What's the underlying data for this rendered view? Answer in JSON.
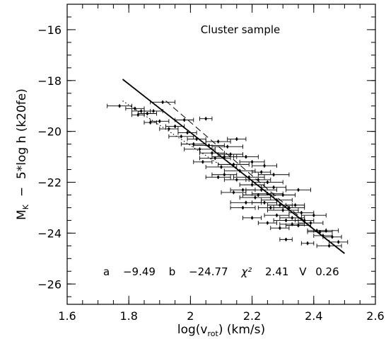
{
  "chart_data": {
    "type": "scatter",
    "title": "Cluster sample",
    "xlabel": "log(v_rot) (km/s)",
    "xlabel_parts": {
      "main": "log(v",
      "sub": "rot",
      "tail": ") (km/s)"
    },
    "ylabel": "M_K - 5*log h (k20fe)",
    "ylabel_parts": {
      "main": "M",
      "sub": "K",
      "tail": "  −  5*log h (k20fe)"
    },
    "xlim": [
      1.6,
      2.6
    ],
    "ylim": [
      -15,
      -26.8
    ],
    "y_inverted": true,
    "x_ticks": [
      1.6,
      1.8,
      2.0,
      2.2,
      2.4,
      2.6
    ],
    "x_tick_labels": [
      "1.6",
      "1.8",
      "2",
      "2.2",
      "2.4",
      "2.6"
    ],
    "y_ticks": [
      -16,
      -18,
      -20,
      -22,
      -24,
      -26
    ],
    "y_tick_labels": [
      "−16",
      "−18",
      "−20",
      "−22",
      "−24",
      "−26"
    ],
    "fit_text": {
      "a_label": "a",
      "a_value": "−9.49",
      "b_label": "b",
      "b_value": "−24.77",
      "chi_label": "χ²",
      "chi_value": "2.41",
      "v_label": "V",
      "v_value": "0.26"
    },
    "lines": [
      {
        "name": "",
        "style": "solid",
        "x": [
          1.78,
          2.5
        ],
        "y": [
          -17.95,
          -24.8
        ]
      },
      {
        "name": "",
        "style": "dashed",
        "x": [
          1.92,
          2.42
        ],
        "y": [
          -18.8,
          -24.05
        ]
      },
      {
        "name": "",
        "style": "dotted",
        "x": [
          1.78,
          2.1
        ],
        "y": [
          -18.8,
          -21.35
        ]
      }
    ],
    "points": [
      {
        "x": 1.77,
        "y": -19.0,
        "xerr": 0.04
      },
      {
        "x": 1.82,
        "y": -19.1,
        "xerr": 0.03
      },
      {
        "x": 1.84,
        "y": -19.2,
        "xerr": 0.03
      },
      {
        "x": 1.86,
        "y": -19.3,
        "xerr": 0.03
      },
      {
        "x": 1.83,
        "y": -19.35,
        "xerr": 0.02
      },
      {
        "x": 1.88,
        "y": -19.2,
        "xerr": 0.03
      },
      {
        "x": 1.91,
        "y": -18.85,
        "xerr": 0.04
      },
      {
        "x": 1.9,
        "y": -19.6,
        "xerr": 0.03
      },
      {
        "x": 1.87,
        "y": -19.65,
        "xerr": 0.02
      },
      {
        "x": 1.93,
        "y": -19.9,
        "xerr": 0.03
      },
      {
        "x": 1.95,
        "y": -19.8,
        "xerr": 0.03
      },
      {
        "x": 1.97,
        "y": -20.2,
        "xerr": 0.04
      },
      {
        "x": 1.99,
        "y": -20.05,
        "xerr": 0.03
      },
      {
        "x": 1.98,
        "y": -19.55,
        "xerr": 0.03
      },
      {
        "x": 2.01,
        "y": -20.5,
        "xerr": 0.04
      },
      {
        "x": 2.03,
        "y": -20.7,
        "xerr": 0.05
      },
      {
        "x": 2.02,
        "y": -20.3,
        "xerr": 0.03
      },
      {
        "x": 2.05,
        "y": -19.5,
        "xerr": 0.02
      },
      {
        "x": 2.06,
        "y": -20.55,
        "xerr": 0.05
      },
      {
        "x": 2.07,
        "y": -20.85,
        "xerr": 0.04
      },
      {
        "x": 2.04,
        "y": -21.2,
        "xerr": 0.03
      },
      {
        "x": 2.08,
        "y": -21.05,
        "xerr": 0.05
      },
      {
        "x": 2.09,
        "y": -20.4,
        "xerr": 0.04
      },
      {
        "x": 2.1,
        "y": -21.4,
        "xerr": 0.05
      },
      {
        "x": 2.11,
        "y": -21.0,
        "xerr": 0.04
      },
      {
        "x": 2.12,
        "y": -20.6,
        "xerr": 0.05
      },
      {
        "x": 2.11,
        "y": -21.7,
        "xerr": 0.04
      },
      {
        "x": 2.13,
        "y": -20.9,
        "xerr": 0.04
      },
      {
        "x": 2.14,
        "y": -21.3,
        "xerr": 0.05
      },
      {
        "x": 2.15,
        "y": -20.3,
        "xerr": 0.03
      },
      {
        "x": 2.15,
        "y": -21.9,
        "xerr": 0.04
      },
      {
        "x": 2.16,
        "y": -21.55,
        "xerr": 0.05
      },
      {
        "x": 2.17,
        "y": -22.3,
        "xerr": 0.04
      },
      {
        "x": 2.18,
        "y": -21.0,
        "xerr": 0.04
      },
      {
        "x": 2.19,
        "y": -21.8,
        "xerr": 0.05
      },
      {
        "x": 2.2,
        "y": -22.1,
        "xerr": 0.04
      },
      {
        "x": 2.2,
        "y": -21.2,
        "xerr": 0.04
      },
      {
        "x": 2.21,
        "y": -22.6,
        "xerr": 0.05
      },
      {
        "x": 2.22,
        "y": -21.9,
        "xerr": 0.04
      },
      {
        "x": 2.23,
        "y": -22.3,
        "xerr": 0.05
      },
      {
        "x": 2.23,
        "y": -21.6,
        "xerr": 0.03
      },
      {
        "x": 2.24,
        "y": -22.8,
        "xerr": 0.04
      },
      {
        "x": 2.25,
        "y": -22.0,
        "xerr": 0.05
      },
      {
        "x": 2.25,
        "y": -22.45,
        "xerr": 0.05
      },
      {
        "x": 2.26,
        "y": -23.0,
        "xerr": 0.04
      },
      {
        "x": 2.27,
        "y": -22.2,
        "xerr": 0.04
      },
      {
        "x": 2.28,
        "y": -22.7,
        "xerr": 0.05
      },
      {
        "x": 2.28,
        "y": -23.3,
        "xerr": 0.04
      },
      {
        "x": 2.29,
        "y": -22.9,
        "xerr": 0.04
      },
      {
        "x": 2.3,
        "y": -23.1,
        "xerr": 0.05
      },
      {
        "x": 2.3,
        "y": -22.5,
        "xerr": 0.04
      },
      {
        "x": 2.31,
        "y": -23.5,
        "xerr": 0.04
      },
      {
        "x": 2.32,
        "y": -23.0,
        "xerr": 0.05
      },
      {
        "x": 2.33,
        "y": -23.4,
        "xerr": 0.04
      },
      {
        "x": 2.34,
        "y": -22.9,
        "xerr": 0.03
      },
      {
        "x": 2.35,
        "y": -23.7,
        "xerr": 0.04
      },
      {
        "x": 2.36,
        "y": -23.2,
        "xerr": 0.04
      },
      {
        "x": 2.37,
        "y": -23.5,
        "xerr": 0.03
      },
      {
        "x": 2.38,
        "y": -24.4,
        "xerr": 0.02
      },
      {
        "x": 2.39,
        "y": -23.6,
        "xerr": 0.04
      },
      {
        "x": 2.4,
        "y": -23.3,
        "xerr": 0.04
      },
      {
        "x": 2.41,
        "y": -23.9,
        "xerr": 0.03
      },
      {
        "x": 2.42,
        "y": -23.95,
        "xerr": 0.04
      },
      {
        "x": 2.43,
        "y": -24.1,
        "xerr": 0.03
      },
      {
        "x": 2.44,
        "y": -23.9,
        "xerr": 0.04
      },
      {
        "x": 2.46,
        "y": -24.15,
        "xerr": 0.03
      },
      {
        "x": 2.48,
        "y": -24.35,
        "xerr": 0.03
      },
      {
        "x": 2.31,
        "y": -24.25,
        "xerr": 0.02
      },
      {
        "x": 2.2,
        "y": -23.4,
        "xerr": 0.03
      },
      {
        "x": 2.17,
        "y": -23.0,
        "xerr": 0.04
      },
      {
        "x": 2.25,
        "y": -23.6,
        "xerr": 0.03
      },
      {
        "x": 2.22,
        "y": -22.5,
        "xerr": 0.05
      },
      {
        "x": 2.14,
        "y": -22.4,
        "xerr": 0.04
      },
      {
        "x": 2.09,
        "y": -21.8,
        "xerr": 0.04
      },
      {
        "x": 2.27,
        "y": -21.7,
        "xerr": 0.05
      },
      {
        "x": 2.35,
        "y": -22.3,
        "xerr": 0.04
      },
      {
        "x": 2.33,
        "y": -23.65,
        "xerr": 0.04
      },
      {
        "x": 2.45,
        "y": -24.5,
        "xerr": 0.04
      },
      {
        "x": 2.29,
        "y": -23.8,
        "xerr": 0.03
      },
      {
        "x": 2.18,
        "y": -22.8,
        "xerr": 0.05
      },
      {
        "x": 2.24,
        "y": -21.35,
        "xerr": 0.04
      }
    ]
  }
}
